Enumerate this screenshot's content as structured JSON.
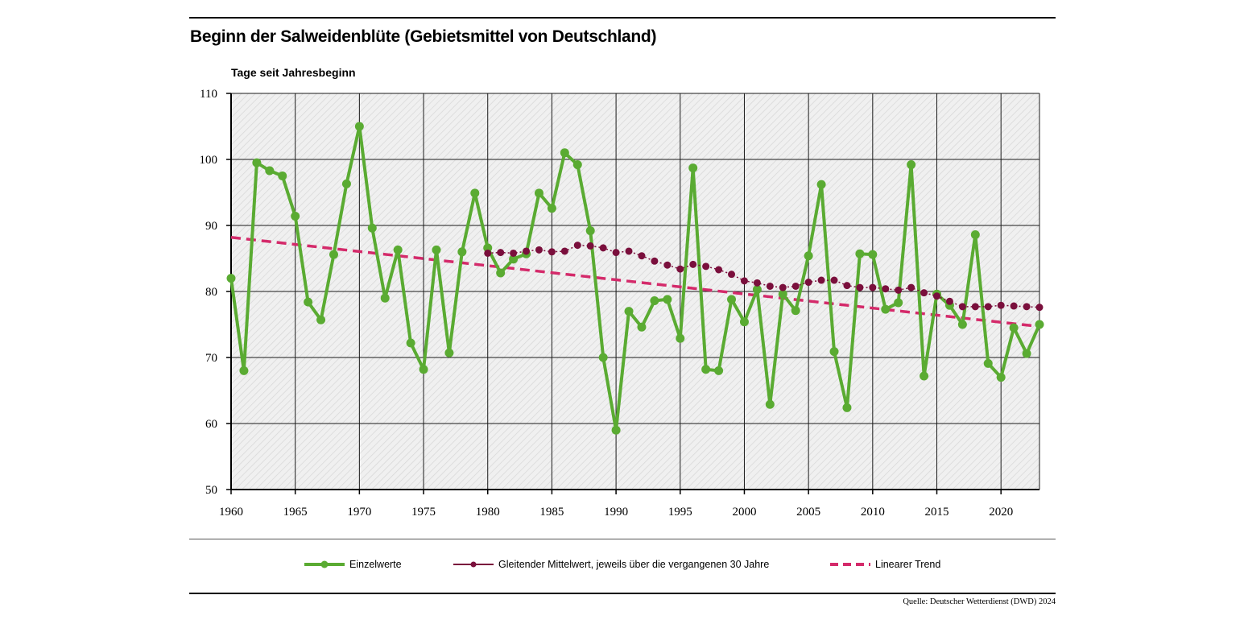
{
  "header": {
    "title": "Beginn der Salweidenblüte (Gebietsmittel von Deutschland)",
    "y_axis_label": "Tage seit Jahresbeginn"
  },
  "legend": {
    "single": "Einzelwerte",
    "moving_avg": "Gleitender Mittelwert, jeweils über die vergangenen 30 Jahre",
    "trend": "Linearer Trend"
  },
  "footer": {
    "source": "Quelle: Deutscher Wetterdienst (DWD) 2024"
  },
  "colors": {
    "single": "#5aab32",
    "moving_avg": "#7a0f3c",
    "trend": "#d42a6a",
    "plot_bg": "#f0f0f0",
    "hatch": "#d6d6d6",
    "grid": "#1a1a1a"
  },
  "chart_data": {
    "type": "line",
    "title": "Beginn der Salweidenblüte (Gebietsmittel von Deutschland)",
    "xlabel": "",
    "ylabel": "Tage seit Jahresbeginn",
    "xlim": [
      1960,
      2023
    ],
    "ylim": [
      50,
      110
    ],
    "x_ticks": [
      1960,
      1965,
      1970,
      1975,
      1980,
      1985,
      1990,
      1995,
      2000,
      2005,
      2010,
      2015,
      2020
    ],
    "y_ticks": [
      50,
      60,
      70,
      80,
      90,
      100,
      110
    ],
    "grid": true,
    "legend_position": "bottom",
    "series": [
      {
        "name": "Einzelwerte",
        "style": "solid line with dots",
        "x": [
          1960,
          1961,
          1962,
          1963,
          1964,
          1965,
          1966,
          1967,
          1968,
          1969,
          1970,
          1971,
          1972,
          1973,
          1974,
          1975,
          1976,
          1977,
          1978,
          1979,
          1980,
          1981,
          1982,
          1983,
          1984,
          1985,
          1986,
          1987,
          1988,
          1989,
          1990,
          1991,
          1992,
          1993,
          1994,
          1995,
          1996,
          1997,
          1998,
          1999,
          2000,
          2001,
          2002,
          2003,
          2004,
          2005,
          2006,
          2007,
          2008,
          2009,
          2010,
          2011,
          2012,
          2013,
          2014,
          2015,
          2016,
          2017,
          2018,
          2019,
          2020,
          2021,
          2022,
          2023
        ],
        "y": [
          82,
          68,
          99.5,
          98.3,
          97.5,
          91.4,
          78.4,
          75.7,
          85.6,
          96.3,
          105,
          89.6,
          79,
          86.3,
          72.2,
          68.2,
          86.3,
          70.7,
          86,
          94.9,
          86.6,
          82.8,
          84.9,
          85.7,
          94.9,
          92.6,
          101,
          99.2,
          89.2,
          70,
          59,
          77,
          74.6,
          78.6,
          78.8,
          72.9,
          98.7,
          68.2,
          68,
          78.8,
          75.4,
          80.3,
          62.9,
          79.6,
          77.1,
          85.4,
          96.2,
          70.9,
          62.4,
          85.7,
          85.6,
          77.3,
          78.3,
          99.2,
          67.2,
          79.6,
          77.9,
          75,
          88.6,
          69.1,
          67,
          74.5,
          70.6,
          75
        ]
      },
      {
        "name": "Gleitender Mittelwert, jeweils über die vergangenen 30 Jahre",
        "style": "dotted line with dots",
        "x": [
          1980,
          1981,
          1982,
          1983,
          1984,
          1985,
          1986,
          1987,
          1988,
          1989,
          1990,
          1991,
          1992,
          1993,
          1994,
          1995,
          1996,
          1997,
          1998,
          1999,
          2000,
          2001,
          2002,
          2003,
          2004,
          2005,
          2006,
          2007,
          2008,
          2009,
          2010,
          2011,
          2012,
          2013,
          2014,
          2015,
          2016,
          2017,
          2018,
          2019,
          2020,
          2021,
          2022,
          2023
        ],
        "y": [
          85.8,
          85.9,
          85.8,
          86.1,
          86.3,
          86,
          86.1,
          87,
          86.9,
          86.6,
          85.9,
          86.1,
          85.4,
          84.6,
          84,
          83.4,
          84.1,
          83.8,
          83.3,
          82.6,
          81.6,
          81.3,
          80.8,
          80.6,
          80.8,
          81.4,
          81.7,
          81.7,
          80.9,
          80.6,
          80.6,
          80.4,
          80.2,
          80.6,
          79.8,
          79.3,
          78.5,
          77.7,
          77.7,
          77.7,
          77.9,
          77.8,
          77.7,
          77.6
        ]
      },
      {
        "name": "Linearer Trend",
        "style": "dashed line",
        "x": [
          1960,
          2023
        ],
        "y": [
          88.2,
          74.7
        ]
      }
    ]
  }
}
